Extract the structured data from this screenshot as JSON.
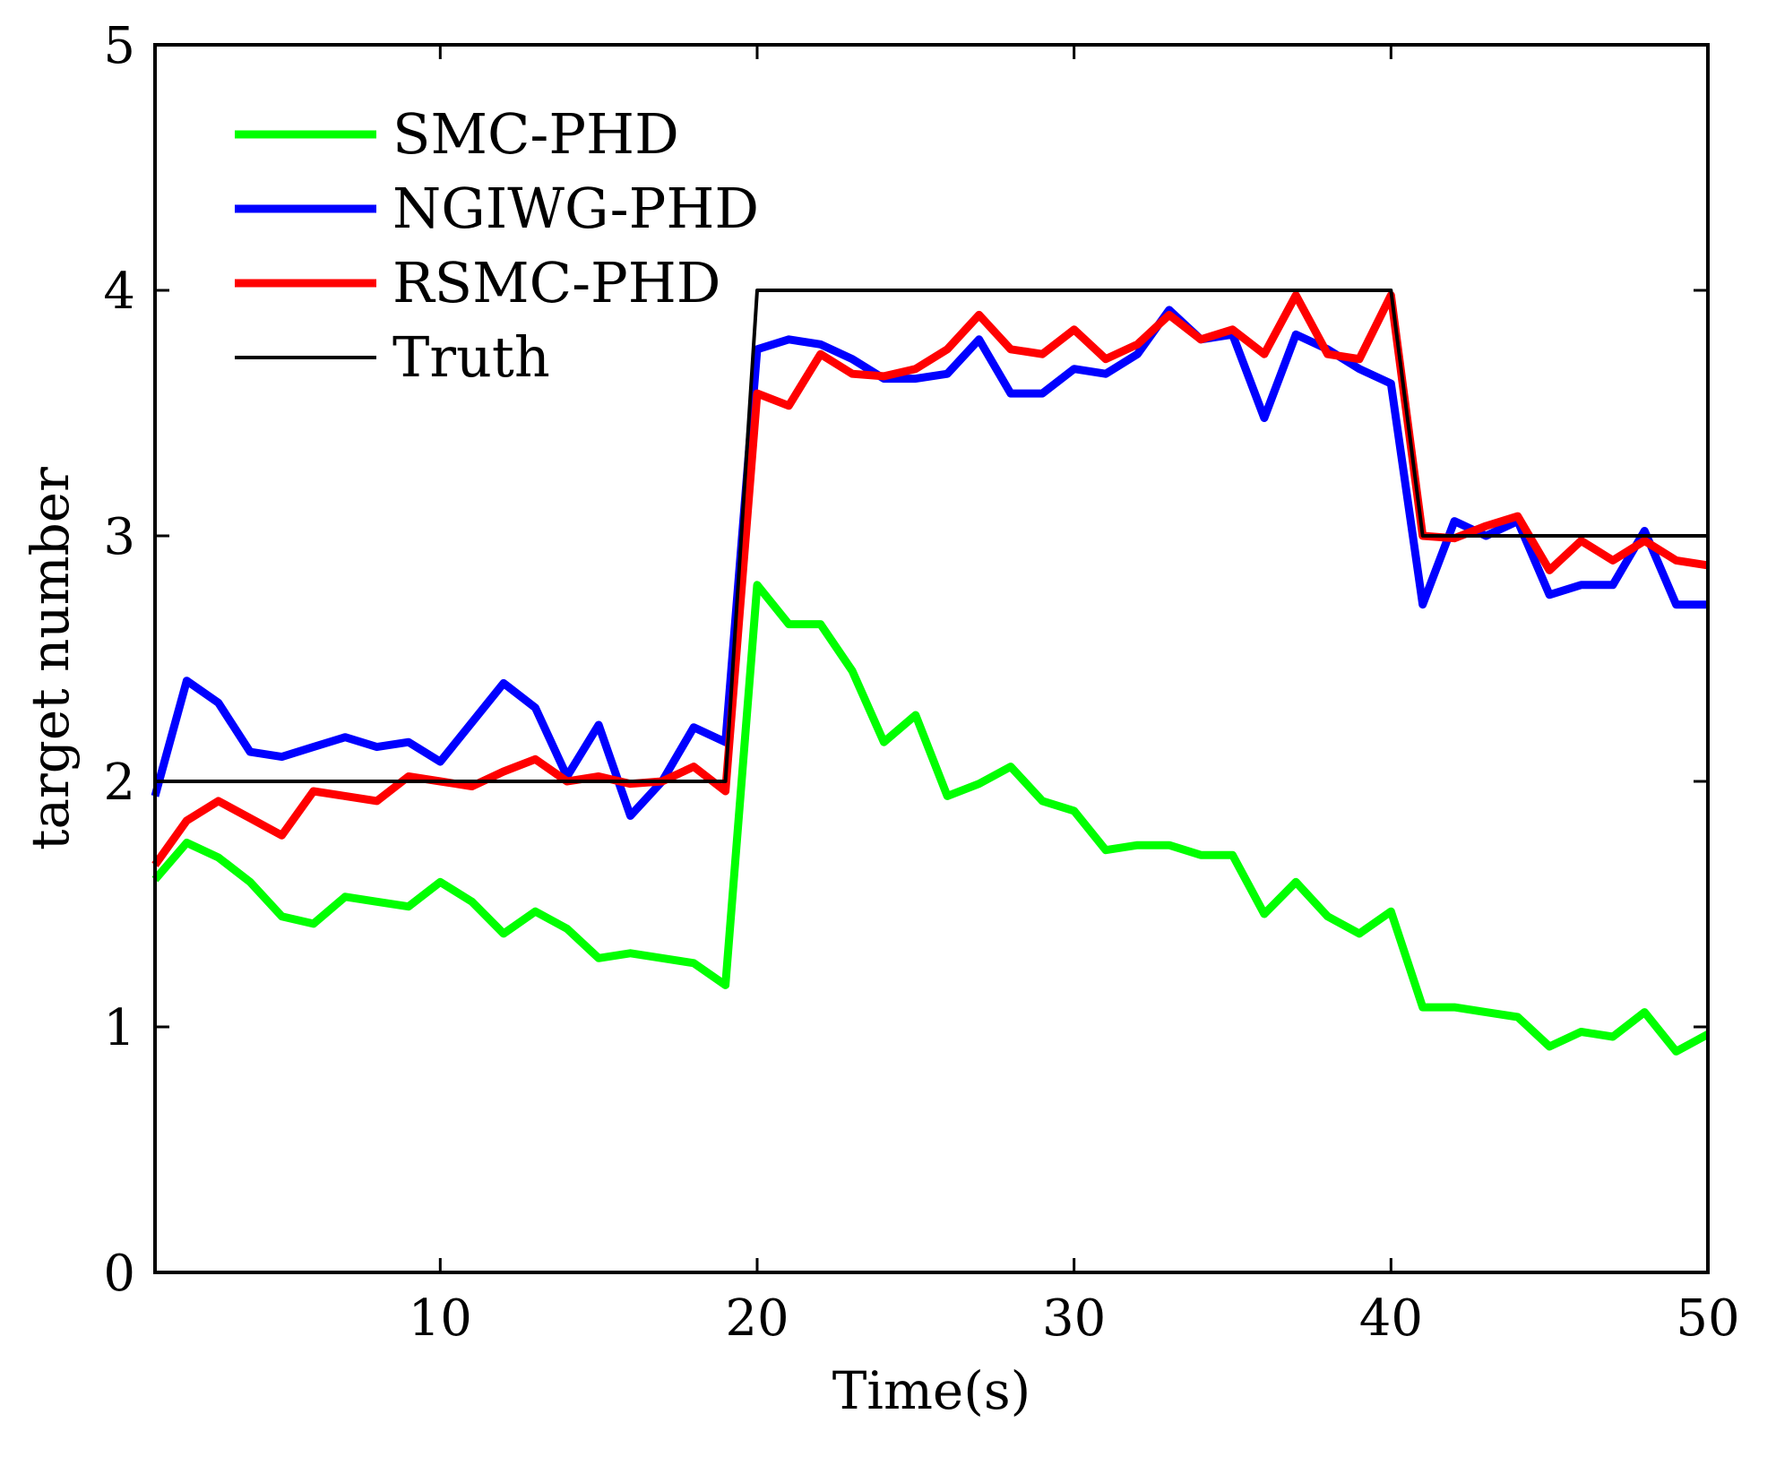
{
  "chart_data": {
    "type": "line",
    "title": "",
    "xlabel": "Time(s)",
    "ylabel": "target number",
    "xlim": [
      1,
      50
    ],
    "ylim": [
      0,
      5
    ],
    "xticks": [
      10,
      20,
      30,
      40,
      50
    ],
    "yticks": [
      0,
      1,
      2,
      3,
      4,
      5
    ],
    "grid": false,
    "legend_position": "top-left",
    "x": [
      1,
      2,
      3,
      4,
      5,
      6,
      7,
      8,
      9,
      10,
      11,
      12,
      13,
      14,
      15,
      16,
      17,
      18,
      19,
      20,
      21,
      22,
      23,
      24,
      25,
      26,
      27,
      28,
      29,
      30,
      31,
      32,
      33,
      34,
      35,
      36,
      37,
      38,
      39,
      40,
      41,
      42,
      43,
      44,
      45,
      46,
      47,
      48,
      49,
      50
    ],
    "series": [
      {
        "name": "SMC-PHD",
        "color": "#00ff00",
        "values": [
          1.6,
          1.75,
          1.69,
          1.59,
          1.45,
          1.42,
          1.53,
          1.51,
          1.49,
          1.59,
          1.51,
          1.38,
          1.47,
          1.4,
          1.28,
          1.3,
          1.28,
          1.26,
          1.17,
          2.8,
          2.64,
          2.64,
          2.45,
          2.16,
          2.27,
          1.94,
          1.99,
          2.06,
          1.92,
          1.88,
          1.72,
          1.74,
          1.74,
          1.7,
          1.7,
          1.46,
          1.59,
          1.45,
          1.38,
          1.47,
          1.08,
          1.08,
          1.06,
          1.04,
          0.92,
          0.98,
          0.96,
          1.06,
          0.9,
          0.97
        ]
      },
      {
        "name": "NGIWG-PHD",
        "color": "#0000ff",
        "values": [
          1.94,
          2.41,
          2.32,
          2.12,
          2.1,
          2.14,
          2.18,
          2.14,
          2.16,
          2.08,
          2.24,
          2.4,
          2.3,
          2.02,
          2.23,
          1.86,
          2.0,
          2.22,
          2.16,
          3.76,
          3.8,
          3.78,
          3.72,
          3.64,
          3.64,
          3.66,
          3.8,
          3.58,
          3.58,
          3.68,
          3.66,
          3.74,
          3.92,
          3.8,
          3.82,
          3.48,
          3.82,
          3.76,
          3.68,
          3.62,
          2.72,
          3.06,
          3.0,
          3.06,
          2.76,
          2.8,
          2.8,
          3.02,
          2.72,
          2.72
        ]
      },
      {
        "name": "RSMC-PHD",
        "color": "#ff0000",
        "values": [
          1.66,
          1.84,
          1.92,
          1.85,
          1.78,
          1.96,
          1.94,
          1.92,
          2.02,
          2.0,
          1.98,
          2.04,
          2.09,
          2.0,
          2.02,
          1.99,
          2.0,
          2.06,
          1.96,
          3.58,
          3.53,
          3.74,
          3.66,
          3.65,
          3.68,
          3.76,
          3.9,
          3.76,
          3.74,
          3.84,
          3.72,
          3.78,
          3.9,
          3.8,
          3.84,
          3.74,
          3.98,
          3.74,
          3.72,
          3.98,
          3.0,
          2.99,
          3.04,
          3.08,
          2.86,
          2.98,
          2.9,
          2.98,
          2.9,
          2.88
        ]
      },
      {
        "name": "Truth",
        "color": "#000000",
        "values": [
          2,
          2,
          2,
          2,
          2,
          2,
          2,
          2,
          2,
          2,
          2,
          2,
          2,
          2,
          2,
          2,
          2,
          2,
          2,
          4,
          4,
          4,
          4,
          4,
          4,
          4,
          4,
          4,
          4,
          4,
          4,
          4,
          4,
          4,
          4,
          4,
          4,
          4,
          4,
          4,
          3,
          3,
          3,
          3,
          3,
          3,
          3,
          3,
          3,
          3
        ]
      }
    ]
  }
}
